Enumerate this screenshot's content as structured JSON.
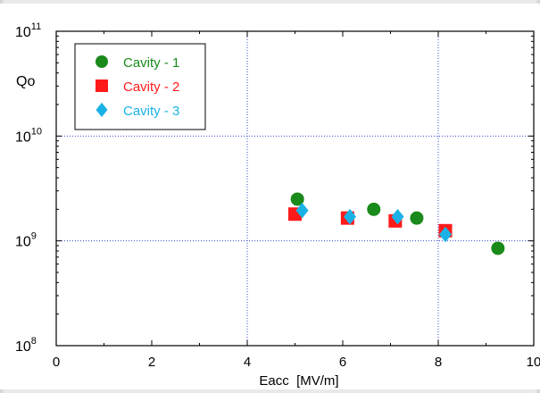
{
  "chart_data": {
    "type": "scatter",
    "title": "",
    "xlabel": "Eacc  [MV/m]",
    "ylabel": "Qo",
    "xlim": [
      0,
      10
    ],
    "ylim": [
      100000000.0,
      100000000000.0
    ],
    "yscale": "log",
    "grid": true,
    "legend_position": "top-left",
    "x_ticks": [
      "0",
      "2",
      "4",
      "6",
      "8",
      "10"
    ],
    "y_ticks": [
      {
        "base": "10",
        "exp": "8",
        "value": 100000000.0
      },
      {
        "base": "10",
        "exp": "9",
        "value": 1000000000.0
      },
      {
        "base": "10",
        "exp": "10",
        "value": 10000000000.0
      },
      {
        "base": "10",
        "exp": "11",
        "value": 100000000000.0
      }
    ],
    "series": [
      {
        "name": "Cavity - 1",
        "marker": "circle",
        "color": "#1a8a1a",
        "points": [
          [
            5.05,
            2500000000.0
          ],
          [
            6.65,
            2000000000.0
          ],
          [
            7.55,
            1650000000.0
          ],
          [
            9.25,
            850000000.0
          ]
        ]
      },
      {
        "name": "Cavity - 2",
        "marker": "square",
        "color": "#ff1a1a",
        "points": [
          [
            5.0,
            1800000000.0
          ],
          [
            6.1,
            1650000000.0
          ],
          [
            7.1,
            1550000000.0
          ],
          [
            8.15,
            1250000000.0
          ]
        ]
      },
      {
        "name": "Cavity - 3",
        "marker": "diamond",
        "color": "#1ab2e6",
        "points": [
          [
            5.15,
            1950000000.0
          ],
          [
            6.15,
            1700000000.0
          ],
          [
            7.15,
            1700000000.0
          ],
          [
            8.15,
            1150000000.0
          ]
        ]
      }
    ]
  }
}
